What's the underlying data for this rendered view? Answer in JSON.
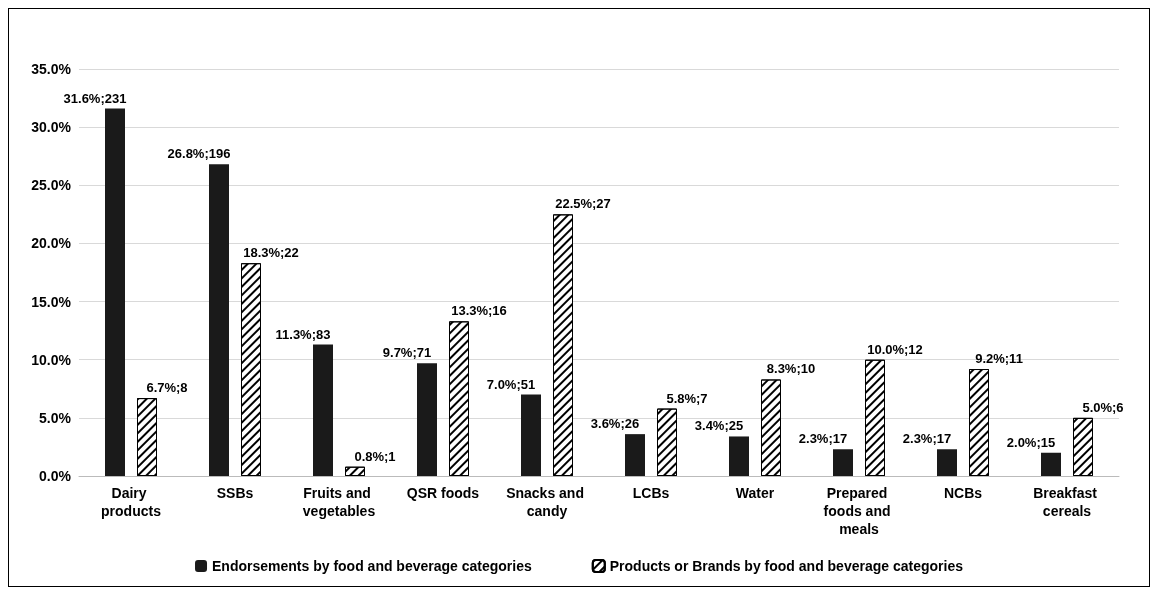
{
  "chart_data": {
    "type": "bar",
    "categories": [
      "Dairy products",
      "SSBs",
      "Fruits and vegetables",
      "QSR foods",
      "Snacks and candy",
      "LCBs",
      "Water",
      "Prepared foods and meals",
      "NCBs",
      "Breakfast cereals"
    ],
    "series": [
      {
        "name": "Endorsements by food and beverage categories",
        "color": "#1a1a1a",
        "values": [
          31.6,
          26.8,
          11.3,
          9.7,
          7.0,
          3.6,
          3.4,
          2.3,
          2.3,
          2.0
        ],
        "value_labels": [
          "31.6%;231",
          "26.8%;196",
          "11.3%;83",
          "9.7%;71",
          "7.0%;51",
          "3.6%;26",
          "3.4%;25",
          "2.3%;17",
          "2.3%;17",
          "2.0%;15"
        ]
      },
      {
        "name": "Products or Brands by food and beverage categories",
        "color": "#ffffff",
        "values": [
          6.7,
          18.3,
          0.8,
          13.3,
          22.5,
          5.8,
          8.3,
          10.0,
          9.2,
          5.0
        ],
        "value_labels": [
          "6.7%;8",
          "18.3%;22",
          "0.8%;1",
          "13.3%;16",
          "22.5%;27",
          "5.8%;7",
          "8.3%;10",
          "10.0%;12",
          "9.2%;11",
          "5.0%;6"
        ]
      }
    ],
    "ylim": [
      0,
      35
    ],
    "yticks": [
      {
        "value": 0,
        "label": "0.0%"
      },
      {
        "value": 5,
        "label": "5.0%"
      },
      {
        "value": 10,
        "label": "10.0%"
      },
      {
        "value": 15,
        "label": "15.0%"
      },
      {
        "value": 20,
        "label": "20.0%"
      },
      {
        "value": 25,
        "label": "25.0%"
      },
      {
        "value": 30,
        "label": "30.0%"
      },
      {
        "value": 35,
        "label": "35.0%"
      }
    ],
    "grid": "y",
    "legend": "bottom"
  }
}
